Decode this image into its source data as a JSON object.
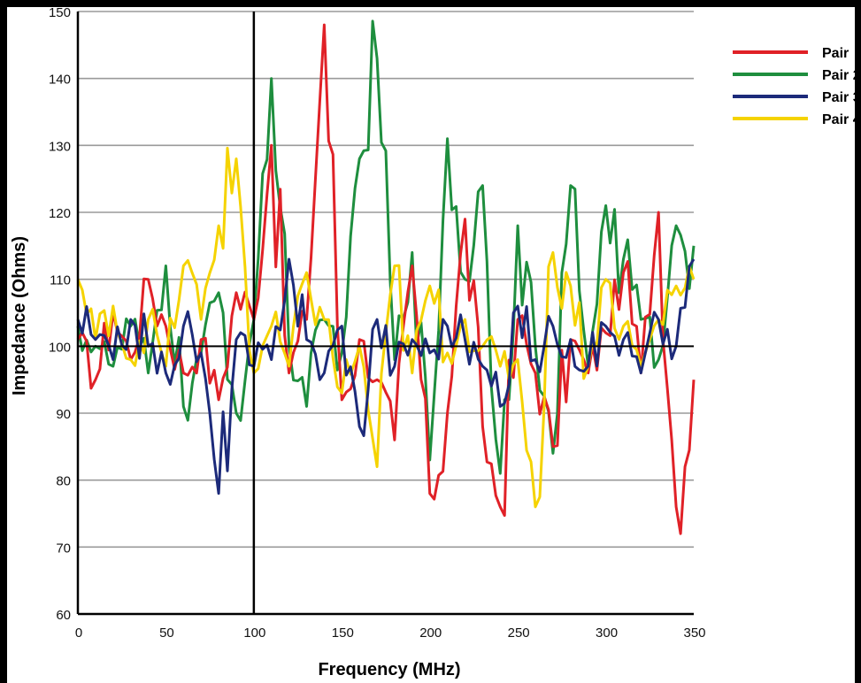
{
  "chart_data": {
    "type": "line",
    "xlabel": "Frequency (MHz)",
    "ylabel": "Impedance (Ohms)",
    "xlim": [
      0,
      350
    ],
    "ylim": [
      60,
      150
    ],
    "x_ticks": [
      "0",
      "50",
      "100",
      "150",
      "200",
      "250",
      "300",
      "350"
    ],
    "y_ticks": [
      "60",
      "70",
      "80",
      "90",
      "100",
      "110",
      "120",
      "130",
      "140",
      "150"
    ],
    "grid": "horizontal",
    "reference_lines": {
      "x": 100,
      "y": 100
    },
    "legend_position": "right",
    "legend": [
      "Pair",
      "Pair 2",
      "Pair 3",
      "Pair 4"
    ],
    "x": [
      0,
      10,
      20,
      30,
      40,
      50,
      60,
      70,
      80,
      90,
      100,
      110,
      120,
      130,
      140,
      150,
      160,
      170,
      180,
      190,
      200,
      210,
      220,
      230,
      240,
      250,
      260,
      270,
      280,
      290,
      300,
      310,
      320,
      330,
      340,
      350
    ],
    "series": [
      {
        "name": "Pair",
        "color": "#e02127",
        "values": [
          101,
          95,
          105,
          98,
          110,
          103,
          96,
          101,
          92,
          108,
          104,
          130,
          96,
          104,
          148,
          92,
          101,
          95,
          86,
          112,
          78,
          90,
          119,
          88,
          76,
          104,
          96,
          85,
          101,
          96,
          102,
          111,
          96,
          120,
          76,
          95
        ]
      },
      {
        "name": "Pair 2",
        "color": "#1e8e3e",
        "values": [
          103,
          100,
          97,
          103,
          96,
          112,
          91,
          99,
          108,
          90,
          104,
          140,
          100,
          91,
          104,
          99,
          128,
          143,
          98,
          114,
          83,
          131,
          110,
          124,
          81,
          118,
          100,
          84,
          124,
          97,
          121,
          113,
          104,
          98,
          118,
          115
        ]
      },
      {
        "name": "Pair 3",
        "color": "#1c2a7a",
        "values": [
          104,
          101,
          98,
          104,
          100,
          96,
          103,
          99,
          78,
          101,
          97,
          98,
          113,
          101,
          96,
          103,
          88,
          104,
          97,
          101,
          99,
          103,
          101,
          97,
          91,
          106,
          98,
          103,
          101,
          97,
          103,
          101,
          96,
          104,
          100,
          113
        ]
      },
      {
        "name": "Pair 4",
        "color": "#f5d300",
        "values": [
          110,
          101,
          106,
          98,
          104,
          97,
          112,
          104,
          118,
          128,
          96,
          103,
          97,
          111,
          104,
          93,
          100,
          82,
          112,
          96,
          109,
          99,
          104,
          100,
          97,
          98,
          76,
          114,
          109,
          97,
          110,
          103,
          97,
          104,
          109,
          110
        ]
      }
    ]
  }
}
